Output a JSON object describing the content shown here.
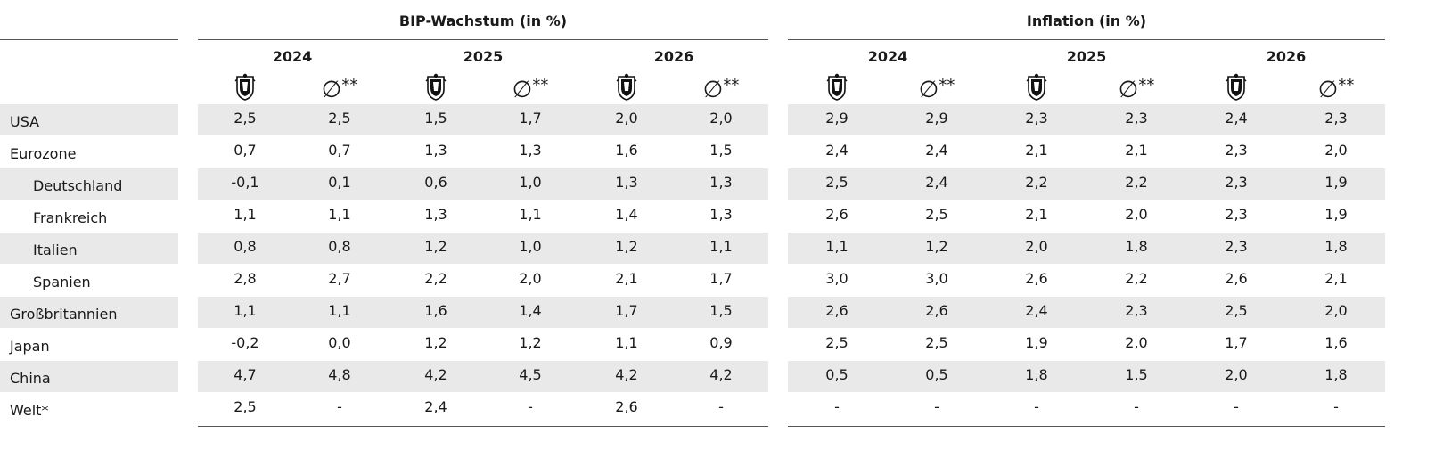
{
  "groups": {
    "gdp_title": "BIP-Wachstum (in %)",
    "inflation_title": "Inflation (in %)"
  },
  "years": [
    "2024",
    "2025",
    "2026"
  ],
  "sub_headers": {
    "avg_symbol": "∅",
    "avg_stars": "**"
  },
  "rows": [
    {
      "label": "USA",
      "indent": false,
      "gdp": [
        "2,5",
        "2,5",
        "1,5",
        "1,7",
        "2,0",
        "2,0"
      ],
      "inflation": [
        "2,9",
        "2,9",
        "2,3",
        "2,3",
        "2,4",
        "2,3"
      ]
    },
    {
      "label": "Eurozone",
      "indent": false,
      "gdp": [
        "0,7",
        "0,7",
        "1,3",
        "1,3",
        "1,6",
        "1,5"
      ],
      "inflation": [
        "2,4",
        "2,4",
        "2,1",
        "2,1",
        "2,3",
        "2,0"
      ]
    },
    {
      "label": "Deutschland",
      "indent": true,
      "gdp": [
        "-0,1",
        "0,1",
        "0,6",
        "1,0",
        "1,3",
        "1,3"
      ],
      "inflation": [
        "2,5",
        "2,4",
        "2,2",
        "2,2",
        "2,3",
        "1,9"
      ]
    },
    {
      "label": "Frankreich",
      "indent": true,
      "gdp": [
        "1,1",
        "1,1",
        "1,3",
        "1,1",
        "1,4",
        "1,3"
      ],
      "inflation": [
        "2,6",
        "2,5",
        "2,1",
        "2,0",
        "2,3",
        "1,9"
      ]
    },
    {
      "label": "Italien",
      "indent": true,
      "gdp": [
        "0,8",
        "0,8",
        "1,2",
        "1,0",
        "1,2",
        "1,1"
      ],
      "inflation": [
        "1,1",
        "1,2",
        "2,0",
        "1,8",
        "2,3",
        "1,8"
      ]
    },
    {
      "label": "Spanien",
      "indent": true,
      "gdp": [
        "2,8",
        "2,7",
        "2,2",
        "2,0",
        "2,1",
        "1,7"
      ],
      "inflation": [
        "3,0",
        "3,0",
        "2,6",
        "2,2",
        "2,6",
        "2,1"
      ]
    },
    {
      "label": "Großbritannien",
      "indent": false,
      "gdp": [
        "1,1",
        "1,1",
        "1,6",
        "1,4",
        "1,7",
        "1,5"
      ],
      "inflation": [
        "2,6",
        "2,6",
        "2,4",
        "2,3",
        "2,5",
        "2,0"
      ]
    },
    {
      "label": "Japan",
      "indent": false,
      "gdp": [
        "-0,2",
        "0,0",
        "1,2",
        "1,2",
        "1,1",
        "0,9"
      ],
      "inflation": [
        "2,5",
        "2,5",
        "1,9",
        "2,0",
        "1,7",
        "1,6"
      ]
    },
    {
      "label": "China",
      "indent": false,
      "gdp": [
        "4,7",
        "4,8",
        "4,2",
        "4,5",
        "4,2",
        "4,2"
      ],
      "inflation": [
        "0,5",
        "0,5",
        "1,8",
        "1,5",
        "2,0",
        "1,8"
      ]
    },
    {
      "label": "Welt*",
      "indent": false,
      "gdp": [
        "2,5",
        "-",
        "2,4",
        "-",
        "2,6",
        "-"
      ],
      "inflation": [
        "-",
        "-",
        "-",
        "-",
        "-",
        "-"
      ]
    }
  ],
  "colors": {
    "shade": "#e9e9e9",
    "rule": "#555555"
  }
}
